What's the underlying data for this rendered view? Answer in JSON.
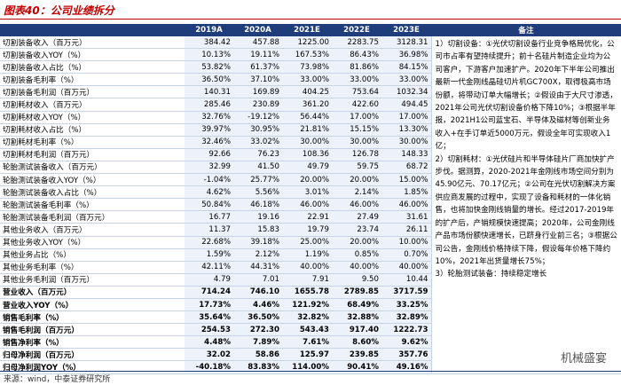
{
  "header": {
    "title": "图表40：公司业绩拆分"
  },
  "table": {
    "columns": [
      "2019A",
      "2020A",
      "2021E",
      "2022E",
      "2023E",
      "备注"
    ],
    "rows": [
      [
        "切割装备收入（百万元）",
        "384.42",
        "457.88",
        "1225.00",
        "2283.75",
        "3128.31"
      ],
      [
        "切割装备收入YOY（%）",
        "10.13%",
        "19.11%",
        "167.53%",
        "86.43%",
        "36.98%"
      ],
      [
        "切割装备收入占比（%）",
        "53.82%",
        "61.37%",
        "73.98%",
        "81.86%",
        "84.15%"
      ],
      [
        "切割装备毛利率（%）",
        "36.50%",
        "37.10%",
        "33.00%",
        "33.00%",
        "33.00%"
      ],
      [
        "切割装备毛利润（百万元）",
        "140.31",
        "169.89",
        "404.25",
        "753.64",
        "1032.34"
      ],
      [
        "切割耗材收入（百万元）",
        "285.46",
        "230.89",
        "361.20",
        "422.60",
        "494.45"
      ],
      [
        "切割耗材收入YOY（%）",
        "32.76%",
        "-19.12%",
        "56.44%",
        "17.00%",
        "17.00%"
      ],
      [
        "切割耗材收入占比（%）",
        "39.97%",
        "30.95%",
        "21.81%",
        "15.15%",
        "13.30%"
      ],
      [
        "切割耗材毛利率（%）",
        "32.46%",
        "33.02%",
        "30.00%",
        "30.00%",
        "30.00%"
      ],
      [
        "切割耗材毛利润（百万元）",
        "92.66",
        "76.23",
        "108.36",
        "126.78",
        "148.33"
      ],
      [
        "轮胎测试装备收入（百万元）",
        "32.99",
        "41.50",
        "49.79",
        "59.75",
        "68.72"
      ],
      [
        "轮胎测试装备收入YOY（%）",
        "-1.04%",
        "25.77%",
        "20.00%",
        "20.00%",
        "15.00%"
      ],
      [
        "轮胎测试装备收入占比（%）",
        "4.62%",
        "5.56%",
        "3.01%",
        "2.14%",
        "1.85%"
      ],
      [
        "轮胎测试装备毛利率（%）",
        "50.84%",
        "46.18%",
        "46.00%",
        "46.00%",
        "46.00%"
      ],
      [
        "轮胎测试装备毛利润（百万元）",
        "16.77",
        "19.16",
        "22.91",
        "27.49",
        "31.61"
      ],
      [
        "其他业务收入（百万元）",
        "11.37",
        "15.83",
        "19.79",
        "23.74",
        "26.11"
      ],
      [
        "其他业务收入YOY（%）",
        "22.68%",
        "39.18%",
        "25.00%",
        "20.00%",
        "10.00%"
      ],
      [
        "其他业务占比（%）",
        "1.59%",
        "2.12%",
        "1.19%",
        "0.85%",
        "0.70%"
      ],
      [
        "其他业务毛利率（%）",
        "42.11%",
        "44.31%",
        "40.00%",
        "40.00%",
        "40.00%"
      ],
      [
        "其他业务毛利润（百万元）",
        "4.79",
        "7.01",
        "7.91",
        "9.50",
        "10.44"
      ],
      [
        "营业收入（百万元）",
        "714.24",
        "746.10",
        "1655.78",
        "2789.85",
        "3717.59"
      ],
      [
        "营业收入YOY（%）",
        "17.73%",
        "4.46%",
        "121.92%",
        "68.49%",
        "33.25%"
      ],
      [
        "销售毛利率（%）",
        "35.64%",
        "36.50%",
        "32.82%",
        "32.88%",
        "32.89%"
      ],
      [
        "销售毛利润（百万元）",
        "254.53",
        "272.30",
        "543.43",
        "917.40",
        "1222.73"
      ],
      [
        "销售净利率（%）",
        "4.48%",
        "7.89%",
        "7.61%",
        "8.60%",
        "9.62%"
      ],
      [
        "归母净利润（百万元）",
        "32.02",
        "58.86",
        "125.97",
        "239.85",
        "357.76"
      ],
      [
        "归母净利润YOY（%）",
        "-40.18%",
        "83.83%",
        "114.00%",
        "90.41%",
        "49.16%"
      ]
    ],
    "notes": [
      "1）切割设备：①光伏切割设备行业竞争格局优化，公司市占率有望持续提升；前十名硅片制造企业均为公司客户，下游客户加速扩产。2020年下半年公司推出最新一代金刚线晶硅切片机GC700X，取得极高市场份额，将带动订单大幅增长；②假设由于大尺寸渗透，2021年公司光伏切割设备价格下降10%；③根据半年报，2021H1公司蓝宝石、半导体及磁材等创新业务收入+在手订单近5000万元，假设全年可实现收入1亿；",
      "2）切割耗材：①光伏硅片和半导体硅片厂商加快扩产步伐。据测算，2020-2021年金刚线市场空间分别为45.90亿元、70.17亿元；②公司在光伏切割解决方案供应商发展的过程中，实现了设备和耗材的一体化销售，也将加快金刚线销量的增长。经过2017-2019年的扩产后，产销规模快速提高；2020年，公司金刚线产品市场份额快速增长，已跻身行业前三名；③根据公司公告，金刚线价格持续下降，假设每年价格下降约10%，2021年出货量增长75%；",
      "3）轮胎测试装备：持续稳定增长"
    ]
  },
  "footer": {
    "source": "来源：wind，中泰证券研究所",
    "watermark": "机械盛宴"
  }
}
